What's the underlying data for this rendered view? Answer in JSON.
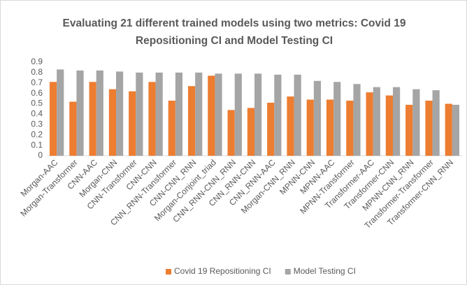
{
  "chart_data": {
    "type": "bar",
    "title": "Evaluating 21 different trained models using two metrics: Covid 19 Repositioning CI and Model Testing CI",
    "categories": [
      "Morgan-AAC",
      "Morgan-Transformer",
      "CNN-AAC",
      "Morgan-CNN",
      "CNN-Transformer",
      "CNN-CNN",
      "CNN_RNN-Transformer",
      "CNN-CNN_RNN",
      "Morgan-Conjoint_triad",
      "CNN_RNN-CNN_RNN",
      "CNN_RNN-CNN",
      "CNN_RNN-AAC",
      "Morgan-CNN_RNN",
      "MPNN-CNN",
      "MPNN-AAC",
      "MPNN-Transformer",
      "Transformer-AAC",
      "Transformer-CNN",
      "MPNN-CNN_RNN",
      "Transformer-Transformer",
      "Transformer-CNN_RNN"
    ],
    "series": [
      {
        "name": "Covid 19 Repositioning CI",
        "color": "#ed7d31",
        "values": [
          0.71,
          0.52,
          0.71,
          0.64,
          0.62,
          0.71,
          0.53,
          0.67,
          0.77,
          0.44,
          0.46,
          0.51,
          0.57,
          0.54,
          0.54,
          0.53,
          0.61,
          0.58,
          0.49,
          0.53,
          0.5
        ]
      },
      {
        "name": "Model Testing CI",
        "color": "#a5a5a5",
        "values": [
          0.83,
          0.82,
          0.82,
          0.81,
          0.8,
          0.8,
          0.8,
          0.8,
          0.79,
          0.79,
          0.79,
          0.78,
          0.78,
          0.72,
          0.71,
          0.69,
          0.66,
          0.66,
          0.64,
          0.63,
          0.49
        ]
      }
    ],
    "ylim": [
      0,
      0.9
    ],
    "yticks": [
      0,
      0.1,
      0.2,
      0.3,
      0.4,
      0.5,
      0.6,
      0.7,
      0.8,
      0.9
    ],
    "grid": false,
    "legend": "bottom"
  }
}
